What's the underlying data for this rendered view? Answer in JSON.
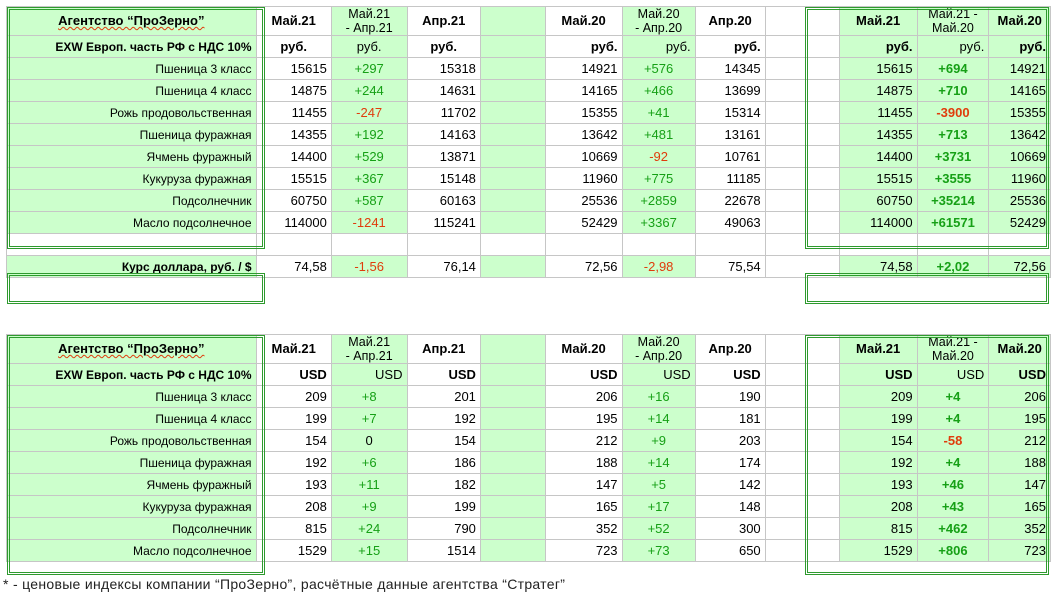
{
  "agency": "Агентство “ПроЗерно”",
  "basis": "EXW Европ. часть РФ с НДС 10%",
  "headers": {
    "may21": "Май.21",
    "may21_apr21_a": "Май.21",
    "may21_apr21_b": "- Апр.21",
    "apr21": "Апр.21",
    "may20": "Май.20",
    "may20_apr20_a": "Май.20",
    "may20_apr20_b": "- Апр.20",
    "apr20": "Апр.20",
    "may21b": "Май.21",
    "may21_may20_a": "Май.21 -",
    "may21_may20_b": "Май.20",
    "may20b": "Май.20"
  },
  "rub": {
    "unit": "руб.",
    "rows": [
      {
        "name": "Пшеница 3 класс",
        "c": [
          "15615",
          "+297",
          "15318",
          "14921",
          "+576",
          "14345",
          "15615",
          "+694",
          "14921"
        ]
      },
      {
        "name": "Пшеница 4 класс",
        "c": [
          "14875",
          "+244",
          "14631",
          "14165",
          "+466",
          "13699",
          "14875",
          "+710",
          "14165"
        ]
      },
      {
        "name": "Рожь продовольственная",
        "c": [
          "11455",
          "-247",
          "11702",
          "15355",
          "+41",
          "15314",
          "11455",
          "-3900",
          "15355"
        ]
      },
      {
        "name": "Пшеница фуражная",
        "c": [
          "14355",
          "+192",
          "14163",
          "13642",
          "+481",
          "13161",
          "14355",
          "+713",
          "13642"
        ]
      },
      {
        "name": "Ячмень фуражный",
        "c": [
          "14400",
          "+529",
          "13871",
          "10669",
          "-92",
          "10761",
          "14400",
          "+3731",
          "10669"
        ]
      },
      {
        "name": "Кукуруза фуражная",
        "c": [
          "15515",
          "+367",
          "15148",
          "11960",
          "+775",
          "11185",
          "15515",
          "+3555",
          "11960"
        ]
      },
      {
        "name": "Подсолнечник",
        "c": [
          "60750",
          "+587",
          "60163",
          "25536",
          "+2859",
          "22678",
          "60750",
          "+35214",
          "25536"
        ]
      },
      {
        "name": "Масло подсолнечное",
        "c": [
          "114000",
          "-1241",
          "115241",
          "52429",
          "+3367",
          "49063",
          "114000",
          "+61571",
          "52429"
        ]
      }
    ]
  },
  "rate": {
    "label": "Курс доллара, руб. / $",
    "c": [
      "74,58",
      "-1,56",
      "76,14",
      "72,56",
      "-2,98",
      "75,54",
      "74,58",
      "+2,02",
      "72,56"
    ]
  },
  "usd": {
    "unit": "USD",
    "rows": [
      {
        "name": "Пшеница 3 класс",
        "c": [
          "209",
          "+8",
          "201",
          "206",
          "+16",
          "190",
          "209",
          "+4",
          "206"
        ]
      },
      {
        "name": "Пшеница 4 класс",
        "c": [
          "199",
          "+7",
          "192",
          "195",
          "+14",
          "181",
          "199",
          "+4",
          "195"
        ]
      },
      {
        "name": "Рожь продовольственная",
        "c": [
          "154",
          "0",
          "154",
          "212",
          "+9",
          "203",
          "154",
          "-58",
          "212"
        ]
      },
      {
        "name": "Пшеница фуражная",
        "c": [
          "192",
          "+6",
          "186",
          "188",
          "+14",
          "174",
          "192",
          "+4",
          "188"
        ]
      },
      {
        "name": "Ячмень фуражный",
        "c": [
          "193",
          "+11",
          "182",
          "147",
          "+5",
          "142",
          "193",
          "+46",
          "147"
        ]
      },
      {
        "name": "Кукуруза фуражная",
        "c": [
          "208",
          "+9",
          "199",
          "165",
          "+17",
          "148",
          "208",
          "+43",
          "165"
        ]
      },
      {
        "name": "Подсолнечник",
        "c": [
          "815",
          "+24",
          "790",
          "352",
          "+52",
          "300",
          "815",
          "+462",
          "352"
        ]
      },
      {
        "name": "Масло подсолнечное",
        "c": [
          "1529",
          "+15",
          "1514",
          "723",
          "+73",
          "650",
          "1529",
          "+806",
          "723"
        ]
      }
    ]
  },
  "footnote": "* - ценовые индексы компании “ПроЗерно”, расчётные данные агентства “Стратег”",
  "colors": {
    "panel": "#ccffcc",
    "frame": "#2e9a2e",
    "positive": "#16a016",
    "negative": "#e03c0c"
  }
}
